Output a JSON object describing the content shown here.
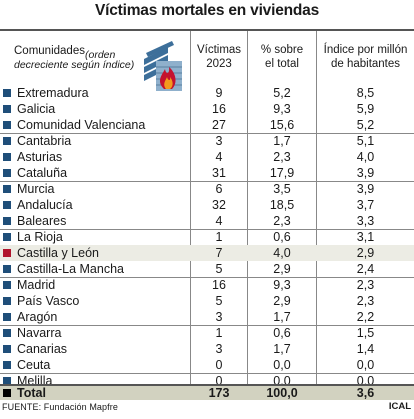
{
  "title": "Víctimas mortales en viviendas",
  "headers": {
    "comunidades": "Comunidades",
    "comunidades_sub_1": "(orden",
    "comunidades_sub_2": "decreciente según índice)",
    "victimas_1": "Víctimas",
    "victimas_2": "2023",
    "pct_1": "% sobre",
    "pct_2": "el total",
    "idx_1": "Índice por millón",
    "idx_2": "de habitantes"
  },
  "chart_data": {
    "type": "table",
    "title": "Víctimas mortales en viviendas",
    "columns": [
      "Comunidades (orden decreciente según índice)",
      "Víctimas 2023",
      "% sobre el total",
      "Índice por millón de habitantes"
    ],
    "rows": [
      {
        "name": "Extremadura",
        "victimas": "9",
        "pct": "5,2",
        "indice": "8,5"
      },
      {
        "name": "Galicia",
        "victimas": "16",
        "pct": "9,3",
        "indice": "5,9"
      },
      {
        "name": "Comunidad Valenciana",
        "victimas": "27",
        "pct": "15,6",
        "indice": "5,2"
      },
      {
        "name": "Cantabria",
        "victimas": "3",
        "pct": "1,7",
        "indice": "5,1"
      },
      {
        "name": "Asturias",
        "victimas": "4",
        "pct": "2,3",
        "indice": "4,0"
      },
      {
        "name": "Cataluña",
        "victimas": "31",
        "pct": "17,9",
        "indice": "3,9"
      },
      {
        "name": "Murcia",
        "victimas": "6",
        "pct": "3,5",
        "indice": "3,9"
      },
      {
        "name": "Andalucía",
        "victimas": "32",
        "pct": "18,5",
        "indice": "3,7"
      },
      {
        "name": "Baleares",
        "victimas": "4",
        "pct": "2,3",
        "indice": "3,3"
      },
      {
        "name": "La Rioja",
        "victimas": "1",
        "pct": "0,6",
        "indice": "3,1"
      },
      {
        "name": "Castilla y León",
        "victimas": "7",
        "pct": "4,0",
        "indice": "2,9",
        "highlight": true
      },
      {
        "name": "Castilla-La Mancha",
        "victimas": "5",
        "pct": "2,9",
        "indice": "2,4"
      },
      {
        "name": "Madrid",
        "victimas": "16",
        "pct": "9,3",
        "indice": "2,3"
      },
      {
        "name": "País Vasco",
        "victimas": "5",
        "pct": "2,9",
        "indice": "2,3"
      },
      {
        "name": "Aragón",
        "victimas": "3",
        "pct": "1,7",
        "indice": "2,2"
      },
      {
        "name": "Navarra",
        "victimas": "1",
        "pct": "0,6",
        "indice": "1,5"
      },
      {
        "name": "Canarias",
        "victimas": "3",
        "pct": "1,7",
        "indice": "1,4"
      },
      {
        "name": "Ceuta",
        "victimas": "0",
        "pct": "0,0",
        "indice": "0,0"
      },
      {
        "name": "Melilla",
        "victimas": "0",
        "pct": "0,0",
        "indice": "0,0"
      }
    ],
    "total": {
      "name": "Total",
      "victimas": "173",
      "pct": "100,0",
      "indice": "3,6"
    }
  },
  "colors": {
    "marker": "#1f4e79",
    "highlight_marker": "#b0152d",
    "highlight_row": "#ecece4",
    "total_row": "#d2d2c0"
  },
  "illustration_icon": "burning-building-icon",
  "source": "FUENTE: Fundación Mapfre",
  "credit": "ICAL"
}
